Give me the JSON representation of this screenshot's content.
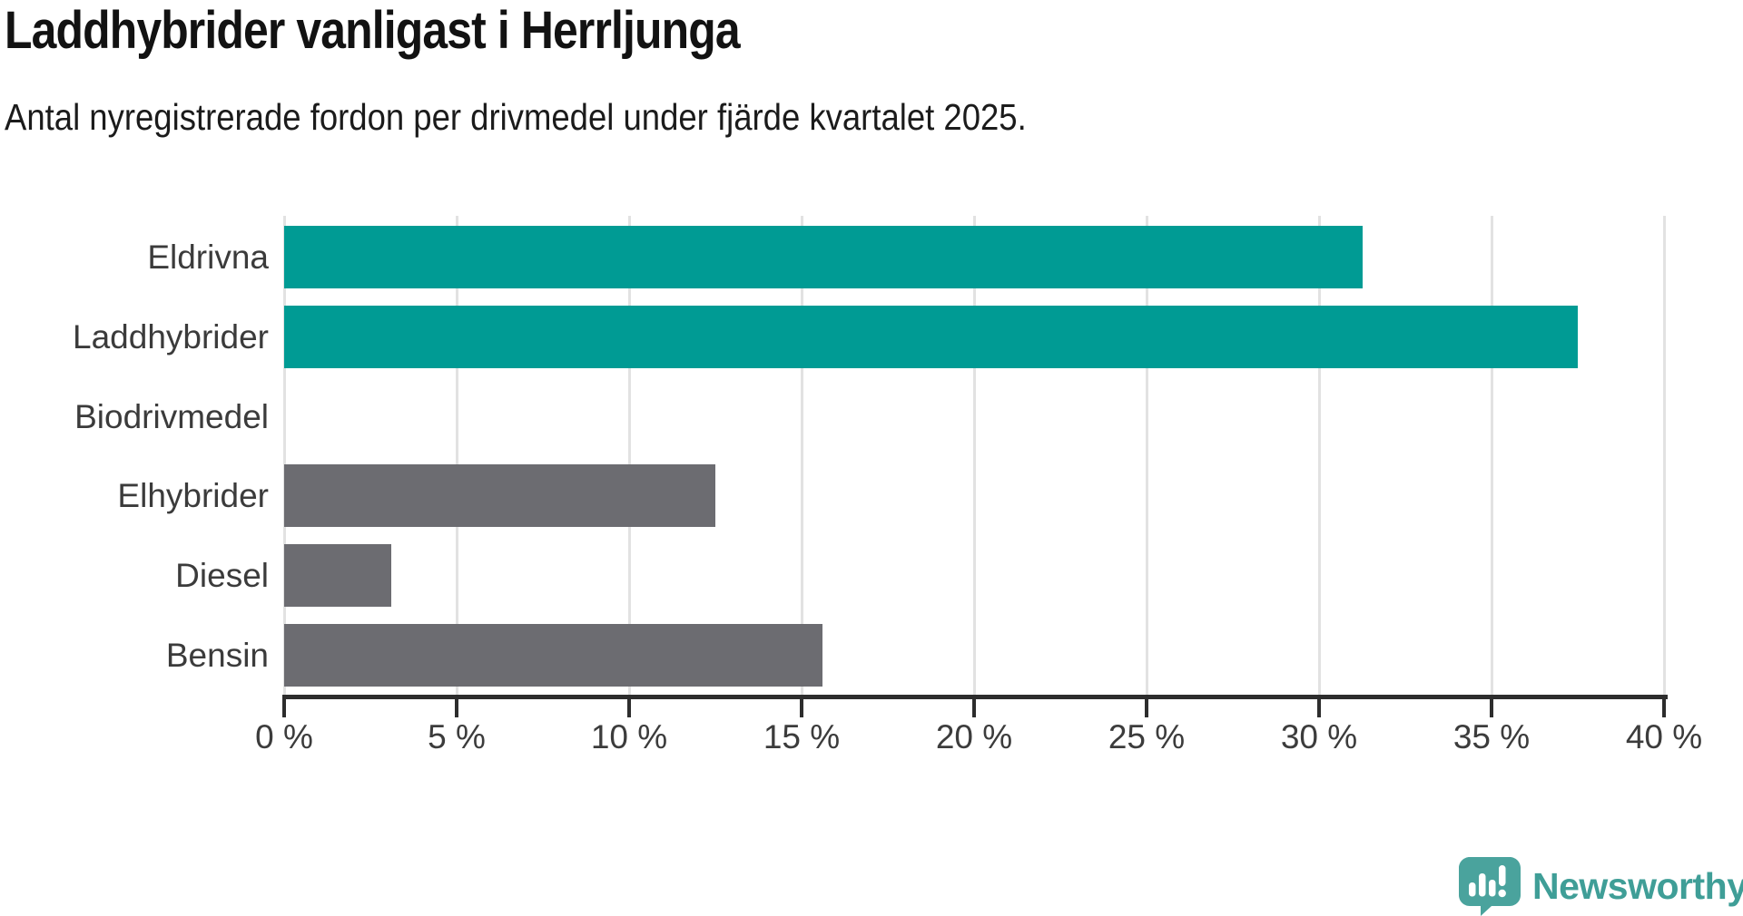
{
  "header": {
    "title": "Laddhybrider vanligast i Herrljunga",
    "subtitle": "Antal nyregistrerade fordon per drivmedel under fjärde kvartalet 2025."
  },
  "chart_data": {
    "type": "bar",
    "orientation": "horizontal",
    "title": "Laddhybrider vanligast i Herrljunga",
    "subtitle": "Antal nyregistrerade fordon per drivmedel under fjärde kvartalet 2025.",
    "categories": [
      "Eldrivna",
      "Laddhybrider",
      "Biodrivmedel",
      "Elhybrider",
      "Diesel",
      "Bensin"
    ],
    "values": [
      31.25,
      37.5,
      0,
      12.5,
      3.1,
      15.6
    ],
    "unit": "%",
    "xlim": [
      0,
      40
    ],
    "x_tick_step": 5,
    "x_tick_labels": [
      "0 %",
      "5 %",
      "10 %",
      "15 %",
      "20 %",
      "25 %",
      "30 %",
      "35 %",
      "40 %"
    ],
    "grid": true,
    "legend": false,
    "bar_colors": [
      "#009b94",
      "#009b94",
      "#6c6c71",
      "#6c6c71",
      "#6c6c71",
      "#6c6c71"
    ],
    "highlight_color": "#009b94",
    "default_color": "#6c6c71",
    "gridline_color": "#e2e2e2",
    "axis_color": "#2d2d2d"
  },
  "footer": {
    "brand": "Newsworthy",
    "brand_color": "#3f9e97",
    "logo_icon": "speech-bubble-bar-chart-exclamation",
    "logo_color": "#4aa39d"
  }
}
